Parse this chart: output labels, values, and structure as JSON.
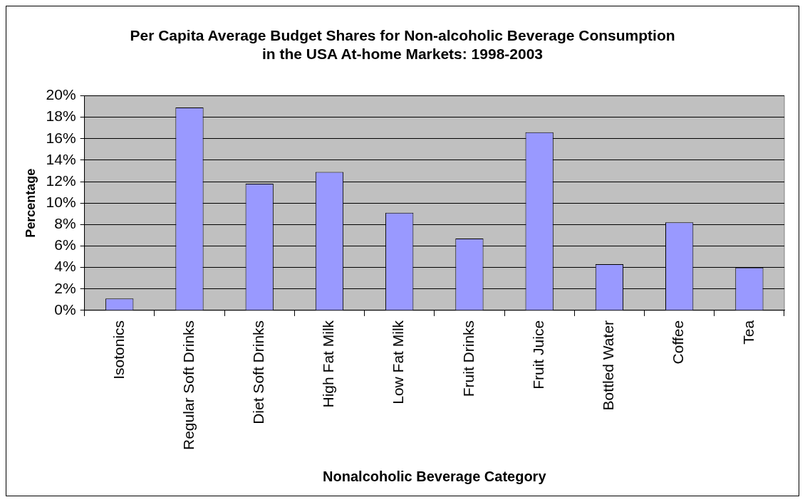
{
  "chart_data": {
    "type": "bar",
    "title": "Per Capita Average Budget Shares for Non-alcoholic Beverage Consumption in the USA At-home Markets: 1998-2003",
    "xlabel": "Nonalcoholic Beverage Category",
    "ylabel": "Percentage",
    "categories": [
      "Isotonics",
      "Regular Soft Drinks",
      "Diet Soft Drinks",
      "High Fat Milk",
      "Low Fat Milk",
      "Fruit Drinks",
      "Fruit Juice",
      "Bottled Water",
      "Coffee",
      "Tea"
    ],
    "values": [
      1.1,
      18.9,
      11.8,
      12.9,
      9.1,
      6.7,
      16.6,
      4.3,
      8.2,
      4.0
    ],
    "color": "#9999ff",
    "ylim": [
      0,
      20
    ],
    "yticks": [
      {
        "value": 0,
        "label": "0%"
      },
      {
        "value": 2,
        "label": "2%"
      },
      {
        "value": 4,
        "label": "4%"
      },
      {
        "value": 6,
        "label": "6%"
      },
      {
        "value": 8,
        "label": "8%"
      },
      {
        "value": 10,
        "label": "10%"
      },
      {
        "value": 12,
        "label": "12%"
      },
      {
        "value": 14,
        "label": "14%"
      },
      {
        "value": 16,
        "label": "16%"
      },
      {
        "value": 18,
        "label": "18%"
      },
      {
        "value": 20,
        "label": "20%"
      }
    ],
    "grid": "y",
    "legend": false
  }
}
